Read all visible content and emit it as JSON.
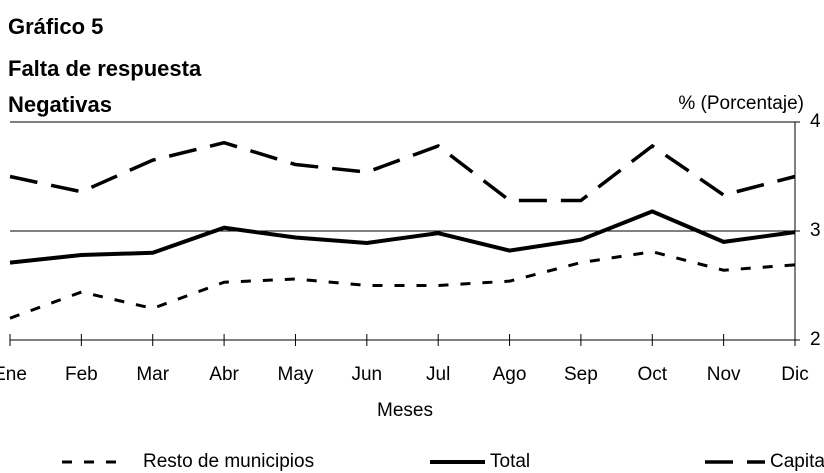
{
  "chart_data": {
    "type": "line",
    "title": "Gráfico 5",
    "subtitle": [
      "Falta de respuesta",
      "Negativas"
    ],
    "y_label": "% (Porcentaje)",
    "x_label": "Meses",
    "categories": [
      "Ene",
      "Feb",
      "Mar",
      "Abr",
      "May",
      "Jun",
      "Jul",
      "Ago",
      "Sep",
      "Oct",
      "Nov",
      "Dic"
    ],
    "series": [
      {
        "name": "Resto de municipios",
        "color": "#000000",
        "style": "dotted",
        "values": [
          2.2,
          2.44,
          2.29,
          2.53,
          2.56,
          2.5,
          2.5,
          2.54,
          2.71,
          2.81,
          2.64,
          2.69
        ]
      },
      {
        "name": "Total",
        "color": "#000000",
        "style": "solid",
        "values": [
          2.71,
          2.78,
          2.8,
          3.03,
          2.94,
          2.89,
          2.98,
          2.82,
          2.92,
          3.18,
          2.9,
          2.99
        ]
      },
      {
        "name": "Capitales",
        "color": "#000000",
        "style": "dashed",
        "values": [
          3.5,
          3.36,
          3.65,
          3.81,
          3.61,
          3.54,
          3.78,
          3.28,
          3.28,
          3.78,
          3.33,
          3.5
        ]
      }
    ],
    "ylim": [
      2,
      4
    ],
    "yticks": [
      2,
      3,
      4
    ],
    "grid": true,
    "y_axis_side": "right",
    "legend": "bottom"
  }
}
